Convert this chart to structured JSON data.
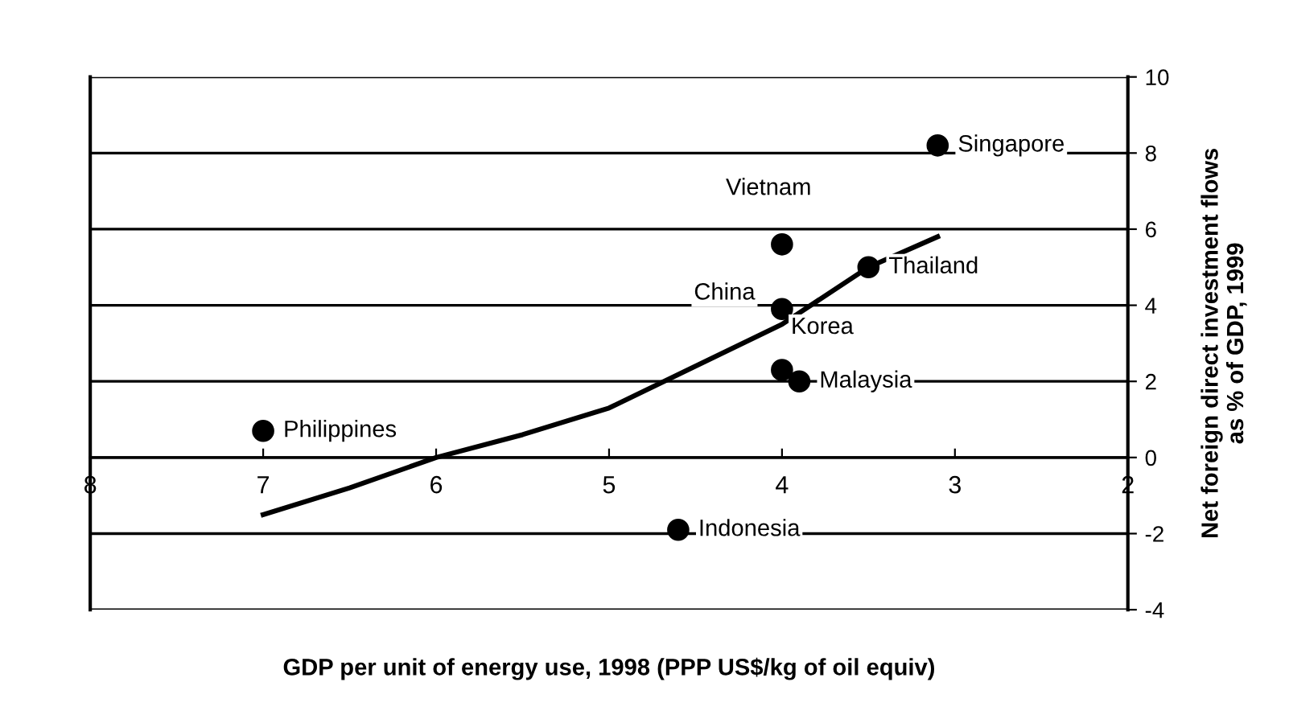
{
  "chart_data": {
    "type": "scatter",
    "xlabel": "GDP per unit of energy use, 1998 (PPP US$/kg of oil equiv)",
    "ylabel": "Net foreign direct investment flows\nas % of GDP, 1999",
    "xlim": [
      8,
      2
    ],
    "xticks": [
      8,
      7,
      6,
      5,
      4,
      3,
      2
    ],
    "ylim": [
      -4,
      10
    ],
    "yticks": [
      -4,
      -2,
      0,
      2,
      4,
      6,
      8,
      10
    ],
    "grid": "y",
    "marker": "circle",
    "series": [
      {
        "color": "#000000",
        "x": [
          3.1,
          4.0,
          3.5,
          4.0,
          4.0,
          3.9,
          4.6,
          7.0
        ],
        "values": [
          8.2,
          5.6,
          5.0,
          3.9,
          2.3,
          2.0,
          -1.9,
          0.7
        ]
      },
      {
        "type": "line",
        "color": "#000000",
        "line_style": "solid",
        "marker": "none",
        "x": [
          7,
          6.5,
          6,
          5.5,
          5,
          4.5,
          4,
          3.5,
          3.1
        ],
        "values": [
          -1.5,
          -0.8,
          0,
          0.6,
          1.3,
          2.4,
          3.5,
          5.0,
          5.8
        ]
      }
    ],
    "annotations": [
      {
        "text": "Singapore",
        "x": 3.1,
        "y": 8.2
      },
      {
        "text": "Vietnam",
        "x": 4.0,
        "y": 5.6
      },
      {
        "text": "Thailand",
        "x": 3.5,
        "y": 5.0
      },
      {
        "text": "China",
        "x": 4.0,
        "y": 3.9
      },
      {
        "text": "Korea",
        "x": 4.0,
        "y": 2.3
      },
      {
        "text": "Malaysia",
        "x": 3.9,
        "y": 2.0
      },
      {
        "text": "Indonesia",
        "x": 4.6,
        "y": -1.9
      },
      {
        "text": "Philippines",
        "x": 7.0,
        "y": 0.7
      }
    ]
  }
}
